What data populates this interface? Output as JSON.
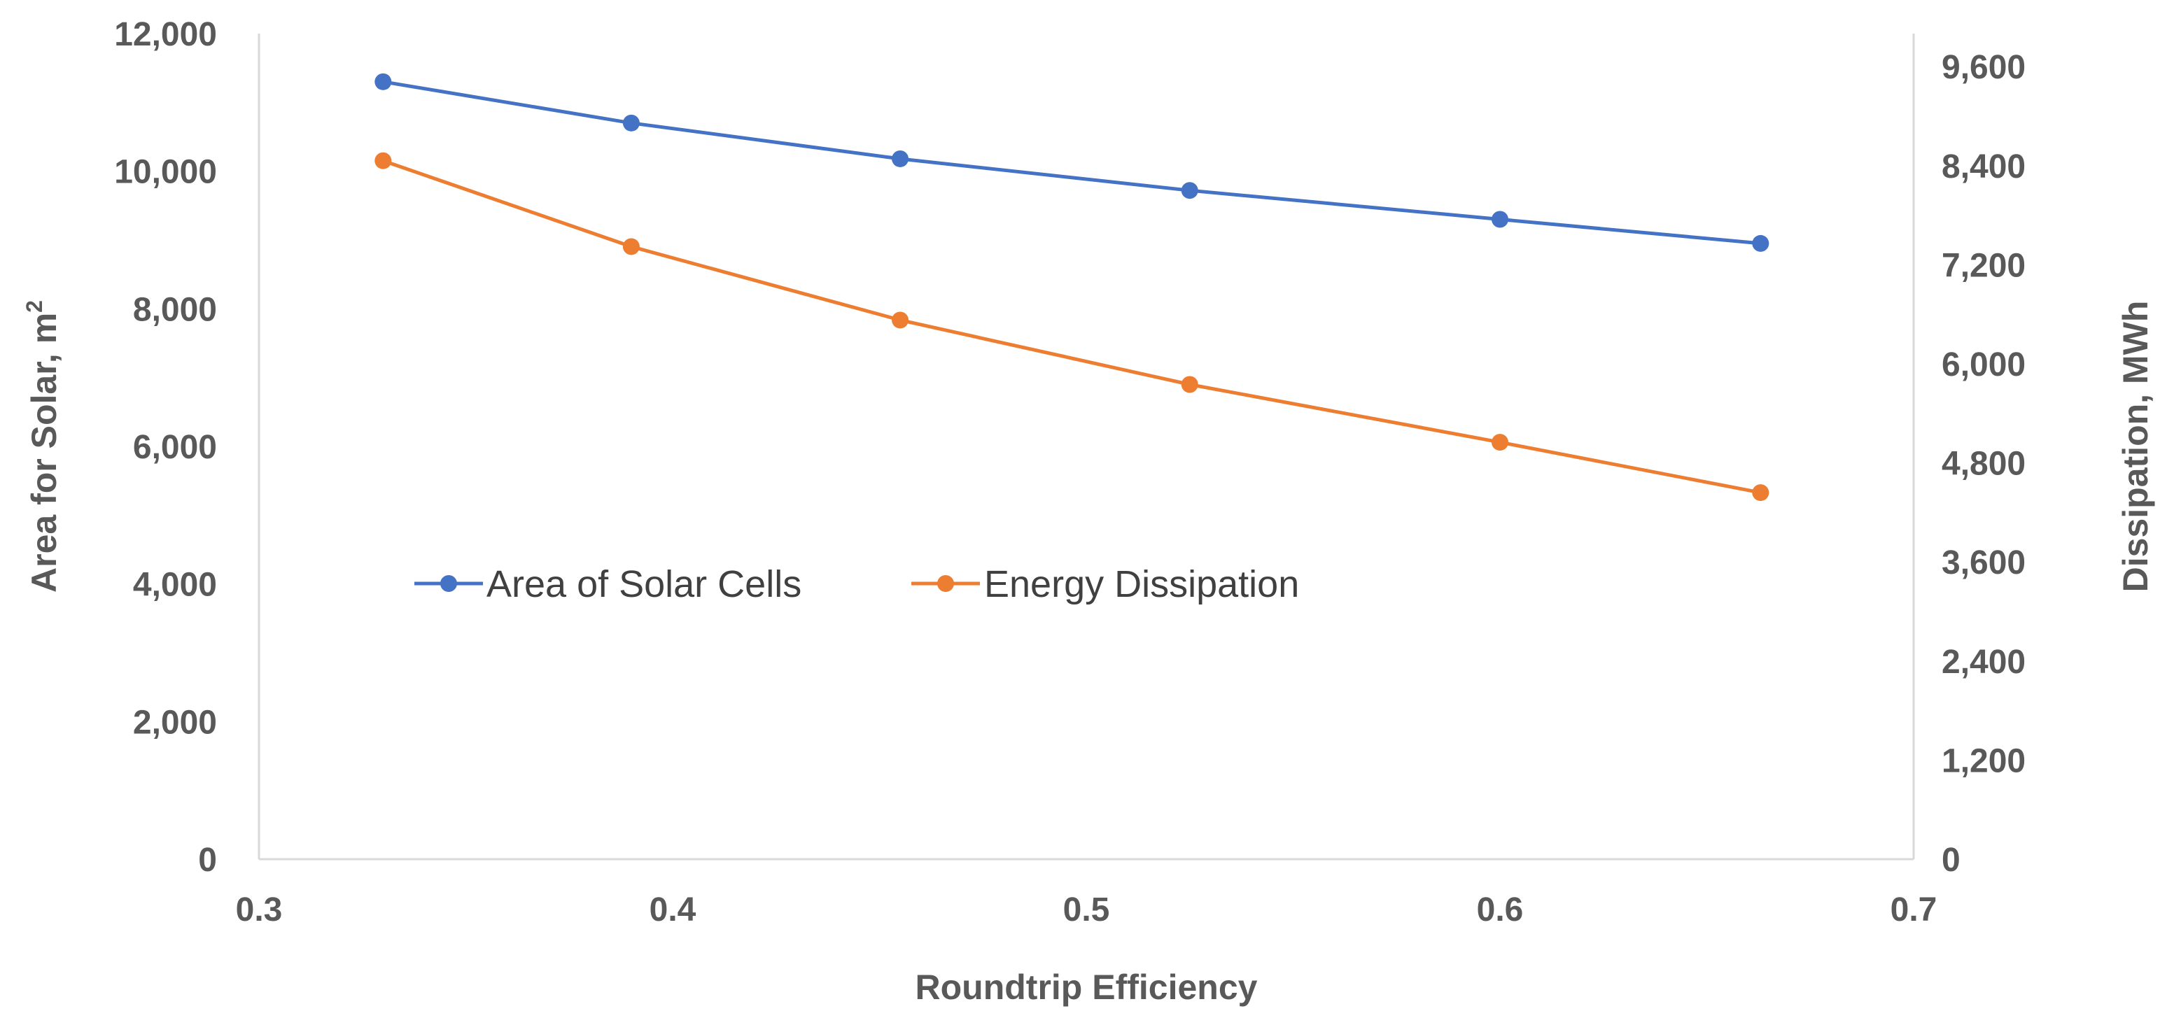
{
  "chart_data": {
    "type": "line",
    "xlabel": "Roundtrip Efficiency",
    "ylabel_left": {
      "base": "Area for Solar, m",
      "superscript": "2"
    },
    "ylabel_right": "Dissipation, MWh",
    "xlim": [
      0.3,
      0.7
    ],
    "ylim_left": [
      0,
      12000
    ],
    "ylim_right": [
      0,
      10000
    ],
    "x_ticks": [
      "0.3",
      "0.4",
      "0.5",
      "0.6",
      "0.7"
    ],
    "y_left_ticks": [
      "0",
      "2,000",
      "4,000",
      "6,000",
      "8,000",
      "10,000",
      "12,000"
    ],
    "y_right_ticks": [
      "0",
      "1,200",
      "2,400",
      "3,600",
      "4,800",
      "6,000",
      "7,200",
      "8,400",
      "9,600"
    ],
    "grid": false,
    "legend_position": "center-left",
    "x": [
      0.33,
      0.39,
      0.455,
      0.525,
      0.6,
      0.663
    ],
    "series": [
      {
        "name": "Area of Solar Cells",
        "axis": "left",
        "color": "#4472C4",
        "values": [
          11300,
          10700,
          10180,
          9720,
          9300,
          8950
        ]
      },
      {
        "name": "Energy Dissipation",
        "axis": "right",
        "color": "#ED7D31",
        "values": [
          8460,
          7420,
          6530,
          5750,
          5050,
          4440
        ]
      }
    ]
  }
}
